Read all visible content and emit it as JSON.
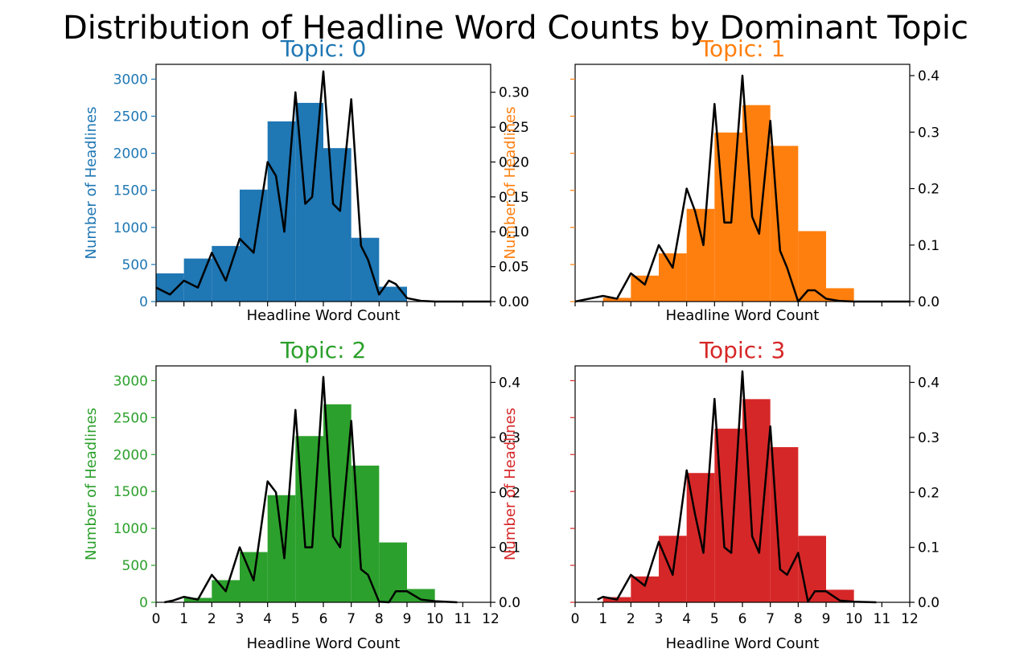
{
  "title": "Distribution of Headline Word Counts by Dominant Topic",
  "chart_data": [
    {
      "type": "bar",
      "title": "Topic: 0",
      "color": "#1f77b4",
      "xlabel": "Headline Word Count",
      "ylabel": "Number of Headlines",
      "xlim": [
        0,
        12
      ],
      "ylim": [
        0,
        3200
      ],
      "y2lim": [
        0,
        0.34
      ],
      "yticks": [
        0,
        500,
        1000,
        1500,
        2000,
        2500,
        3000
      ],
      "y2ticks": [
        "0.00",
        "0.05",
        "0.10",
        "0.15",
        "0.20",
        "0.25",
        "0.30"
      ],
      "show_yticks": true,
      "show_xtick_labels": false,
      "bins": [
        [
          0,
          1
        ],
        [
          1,
          2
        ],
        [
          2,
          3
        ],
        [
          3,
          4
        ],
        [
          4,
          5
        ],
        [
          5,
          6
        ],
        [
          6,
          7
        ],
        [
          7,
          8
        ],
        [
          8,
          9
        ],
        [
          9,
          10
        ]
      ],
      "values": [
        380,
        580,
        750,
        1510,
        2430,
        2680,
        2070,
        860,
        200,
        0
      ],
      "density_x": [
        0,
        0.5,
        1,
        1.5,
        2,
        2.5,
        3,
        3.5,
        4,
        4.3,
        4.6,
        5,
        5.35,
        5.6,
        6,
        6.35,
        6.6,
        7,
        7.35,
        7.6,
        8,
        8.35,
        8.6,
        9,
        9.5,
        10,
        11,
        12
      ],
      "density_y": [
        0.02,
        0.01,
        0.03,
        0.02,
        0.07,
        0.03,
        0.09,
        0.07,
        0.2,
        0.18,
        0.1,
        0.3,
        0.14,
        0.15,
        0.33,
        0.14,
        0.13,
        0.29,
        0.08,
        0.06,
        0.01,
        0.03,
        0.025,
        0.005,
        0.001,
        0.0,
        0.0,
        0.0
      ]
    },
    {
      "type": "bar",
      "title": "Topic: 1",
      "color": "#ff7f0e",
      "xlabel": "Headline Word Count",
      "ylabel": "Number of Headlines",
      "xlim": [
        0,
        12
      ],
      "ylim": [
        0,
        3200
      ],
      "y2lim": [
        0,
        0.42
      ],
      "yticks": [
        0,
        500,
        1000,
        1500,
        2000,
        2500,
        3000
      ],
      "y2ticks": [
        "0.0",
        "0.1",
        "0.2",
        "0.3",
        "0.4"
      ],
      "show_yticks": false,
      "show_xtick_labels": false,
      "bins": [
        [
          0,
          1
        ],
        [
          1,
          2
        ],
        [
          2,
          3
        ],
        [
          3,
          4
        ],
        [
          4,
          5
        ],
        [
          5,
          6
        ],
        [
          6,
          7
        ],
        [
          7,
          8
        ],
        [
          8,
          9
        ],
        [
          9,
          10
        ]
      ],
      "values": [
        0,
        50,
        350,
        650,
        1250,
        2280,
        2650,
        2100,
        950,
        180
      ],
      "density_x": [
        0,
        0.5,
        1,
        1.5,
        2,
        2.5,
        3,
        3.5,
        4,
        4.3,
        4.6,
        5,
        5.35,
        5.6,
        6,
        6.35,
        6.6,
        7,
        7.35,
        7.6,
        8,
        8.35,
        8.6,
        9,
        9.5,
        10,
        11,
        12
      ],
      "density_y": [
        0.0,
        0.005,
        0.01,
        0.005,
        0.05,
        0.03,
        0.1,
        0.06,
        0.2,
        0.16,
        0.1,
        0.35,
        0.14,
        0.14,
        0.4,
        0.15,
        0.12,
        0.32,
        0.09,
        0.06,
        0.0,
        0.02,
        0.02,
        0.005,
        0.001,
        0.0,
        0.0,
        0.0
      ]
    },
    {
      "type": "bar",
      "title": "Topic: 2",
      "color": "#2ca02c",
      "xlabel": "Headline Word Count",
      "ylabel": "Number of Headlines",
      "xlim": [
        0,
        12
      ],
      "ylim": [
        0,
        3200
      ],
      "y2lim": [
        0,
        0.43
      ],
      "yticks": [
        0,
        500,
        1000,
        1500,
        2000,
        2500,
        3000
      ],
      "y2ticks": [
        "0.0",
        "0.1",
        "0.2",
        "0.3",
        "0.4"
      ],
      "show_yticks": true,
      "show_xtick_labels": true,
      "xticks": [
        "0",
        "1",
        "2",
        "3",
        "4",
        "5",
        "6",
        "7",
        "8",
        "9",
        "10",
        "11",
        "12"
      ],
      "bins": [
        [
          0,
          1
        ],
        [
          1,
          2
        ],
        [
          2,
          3
        ],
        [
          3,
          4
        ],
        [
          4,
          5
        ],
        [
          5,
          6
        ],
        [
          6,
          7
        ],
        [
          7,
          8
        ],
        [
          8,
          9
        ],
        [
          9,
          10
        ]
      ],
      "values": [
        0,
        60,
        300,
        680,
        1450,
        2250,
        2680,
        1850,
        810,
        180
      ],
      "density_x": [
        0.3,
        0.6,
        1,
        1.5,
        2,
        2.5,
        3,
        3.5,
        4,
        4.3,
        4.6,
        5,
        5.35,
        5.6,
        6,
        6.35,
        6.6,
        7,
        7.35,
        7.6,
        8,
        8.35,
        8.6,
        9,
        9.5,
        10,
        10.8
      ],
      "density_y": [
        0.0,
        0.003,
        0.01,
        0.005,
        0.05,
        0.02,
        0.1,
        0.04,
        0.22,
        0.2,
        0.08,
        0.35,
        0.1,
        0.1,
        0.41,
        0.12,
        0.1,
        0.33,
        0.06,
        0.05,
        0.001,
        0.0,
        0.02,
        0.02,
        0.005,
        0.002,
        0.0
      ]
    },
    {
      "type": "bar",
      "title": "Topic: 3",
      "color": "#d62728",
      "xlabel": "Headline Word Count",
      "ylabel": "Number of Headlines",
      "xlim": [
        0,
        12
      ],
      "ylim": [
        0,
        3200
      ],
      "y2lim": [
        0,
        0.43
      ],
      "yticks": [
        0,
        500,
        1000,
        1500,
        2000,
        2500,
        3000
      ],
      "y2ticks": [
        "0.0",
        "0.1",
        "0.2",
        "0.3",
        "0.4"
      ],
      "show_yticks": false,
      "show_xtick_labels": true,
      "xticks": [
        "0",
        "1",
        "2",
        "3",
        "4",
        "5",
        "6",
        "7",
        "8",
        "9",
        "10",
        "11",
        "12"
      ],
      "bins": [
        [
          0,
          1
        ],
        [
          1,
          2
        ],
        [
          2,
          3
        ],
        [
          3,
          4
        ],
        [
          4,
          5
        ],
        [
          5,
          6
        ],
        [
          6,
          7
        ],
        [
          7,
          8
        ],
        [
          8,
          9
        ],
        [
          9,
          10
        ]
      ],
      "values": [
        0,
        70,
        350,
        900,
        1750,
        2350,
        2750,
        2100,
        900,
        170
      ],
      "density_x": [
        0.8,
        1,
        1.5,
        2,
        2.5,
        3,
        3.5,
        4,
        4.3,
        4.6,
        5,
        5.35,
        5.6,
        6,
        6.35,
        6.6,
        7,
        7.35,
        7.6,
        8,
        8.35,
        8.6,
        9,
        9.5,
        10,
        10.8
      ],
      "density_y": [
        0.005,
        0.01,
        0.005,
        0.05,
        0.03,
        0.11,
        0.05,
        0.24,
        0.16,
        0.09,
        0.37,
        0.1,
        0.09,
        0.42,
        0.12,
        0.09,
        0.32,
        0.06,
        0.05,
        0.09,
        0.001,
        0.02,
        0.02,
        0.003,
        0.001,
        0.0
      ]
    }
  ]
}
